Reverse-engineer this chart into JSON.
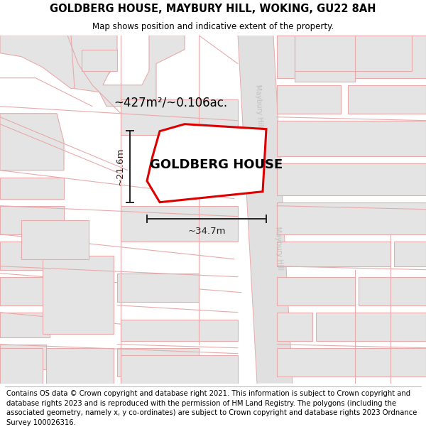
{
  "title": "GOLDBERG HOUSE, MAYBURY HILL, WOKING, GU22 8AH",
  "subtitle": "Map shows position and indicative extent of the property.",
  "footer": "Contains OS data © Crown copyright and database right 2021. This information is subject to Crown copyright and database rights 2023 and is reproduced with the permission of HM Land Registry. The polygons (including the associated geometry, namely x, y co-ordinates) are subject to Crown copyright and database rights 2023 Ordnance Survey 100026316.",
  "property_label": "GOLDBERG HOUSE",
  "area_label": "~427m²/~0.106ac.",
  "width_label": "~34.7m",
  "height_label": "~21.6m",
  "map_bg": "#f2f2f2",
  "road_fill": "#e0e0e0",
  "block_fill": "#e4e4e4",
  "block_edge": "#e8aaaa",
  "road_edge": "#e8aaaa",
  "property_fill": "#ffffff",
  "property_edge": "#dd0000",
  "road_label_color": "#c0c0c0",
  "dim_color": "#222222",
  "title_fontsize": 10.5,
  "subtitle_fontsize": 8.5,
  "footer_fontsize": 7.2,
  "area_fontsize": 12,
  "property_fontsize": 13,
  "dim_fontsize": 9.5
}
